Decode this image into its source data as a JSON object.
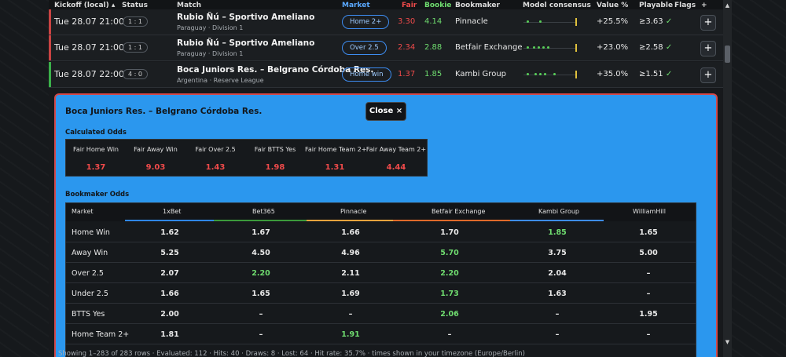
{
  "header": {
    "kickoff": "Kickoff (local) ▴",
    "status": "Status",
    "match": "Match",
    "market": "Market",
    "fair": "Fair",
    "bookie": "Bookie",
    "bookmaker": "Bookmaker",
    "consensus": "Model consensus",
    "value": "Value %",
    "playable": "Playable",
    "flags": "Flags",
    "plus": "+"
  },
  "colors": {
    "fair": "#ef4a4a",
    "bookie": "#6fdc6f",
    "market_border": "#3d8cf0",
    "panel": "#2b97ee",
    "panel_border": "#d2494a",
    "underline_1xbet": "#2f86e6",
    "underline_bet365": "#3b9a3b",
    "underline_pinnacle": "#e8a33d",
    "underline_betfair": "#e06a2a",
    "underline_kambi": "#3d8cf0"
  },
  "rows": [
    {
      "kickoff": "Tue 28.07 21:00",
      "status": "1 : 1",
      "match": "Rubio Ñú – Sportivo Ameliano",
      "league": "Paraguay · Division 1",
      "market": "Home 2+",
      "fair": "3.30",
      "bookie": "4.14",
      "bookmaker": "Pinnacle",
      "value": "+25.5%",
      "playable": "≥3.63",
      "check": "✓",
      "add": "+",
      "bar_color": "#c94343"
    },
    {
      "kickoff": "Tue 28.07 21:00",
      "status": "1 : 1",
      "match": "Rubio Ñú – Sportivo Ameliano",
      "league": "Paraguay · Division 1",
      "market": "Over 2.5",
      "fair": "2.34",
      "bookie": "2.88",
      "bookmaker": "Betfair Exchange",
      "value": "+23.0%",
      "playable": "≥2.58",
      "check": "✓",
      "add": "+",
      "bar_color": "#c94343"
    },
    {
      "kickoff": "Tue 28.07 22:00",
      "status": "4 : 0",
      "match": "Boca Juniors Res. – Belgrano Córdoba Res.",
      "league": "Argentina · Reserve League",
      "market": "Home win",
      "fair": "1.37",
      "bookie": "1.85",
      "bookmaker": "Kambi Group",
      "value": "+35.0%",
      "playable": "≥1.51",
      "check": "✓",
      "add": "+",
      "bar_color": "#3bb04a"
    }
  ],
  "detail": {
    "title": "Boca Juniors Res. – Belgrano Córdoba Res.",
    "close": "Close ×",
    "calculated_title": "Calculated Odds",
    "calculated": [
      {
        "label": "Fair Home Win",
        "value": "1.37"
      },
      {
        "label": "Fair Away Win",
        "value": "9.03"
      },
      {
        "label": "Fair Over 2.5",
        "value": "1.43"
      },
      {
        "label": "Fair BTTS Yes",
        "value": "1.98"
      },
      {
        "label": "Fair Home Team 2+",
        "value": "1.31"
      },
      {
        "label": "Fair Away Team 2+",
        "value": "4.44"
      }
    ],
    "bookmaker_title": "Bookmaker Odds",
    "bookmaker_header": {
      "market": "Market",
      "b1": "1xBet",
      "b2": "Bet365",
      "b3": "Pinnacle",
      "b4": "Betfair Exchange",
      "b5": "Kambi Group",
      "b6": "WilliamHill"
    },
    "bookmaker_rows": [
      {
        "market": "Home Win",
        "c1": "1.62",
        "c2": "1.67",
        "c3": "1.66",
        "c4": "1.70",
        "c5": "1.85",
        "c6": "1.65"
      },
      {
        "market": "Away Win",
        "c1": "5.25",
        "c2": "4.50",
        "c3": "4.96",
        "c4": "5.70",
        "c5": "3.75",
        "c6": "5.00"
      },
      {
        "market": "Over 2.5",
        "c1": "2.07",
        "c2": "2.20",
        "c3": "2.11",
        "c4": "2.20",
        "c5": "2.04",
        "c6": "–"
      },
      {
        "market": "Under 2.5",
        "c1": "1.66",
        "c2": "1.65",
        "c3": "1.69",
        "c4": "1.73",
        "c5": "1.63",
        "c6": "–"
      },
      {
        "market": "BTTS Yes",
        "c1": "2.00",
        "c2": "–",
        "c3": "–",
        "c4": "2.06",
        "c5": "–",
        "c6": "1.95"
      },
      {
        "market": "Home Team 2+",
        "c1": "1.81",
        "c2": "–",
        "c3": "1.91",
        "c4": "–",
        "c5": "–",
        "c6": "–"
      }
    ]
  },
  "footer": "Showing 1–283 of 283 rows · Evaluated: 112 · Hits: 40 · Draws: 8 · Lost: 64 · Hit rate: 35.7% · times shown in your timezone (Europe/Berlin)"
}
